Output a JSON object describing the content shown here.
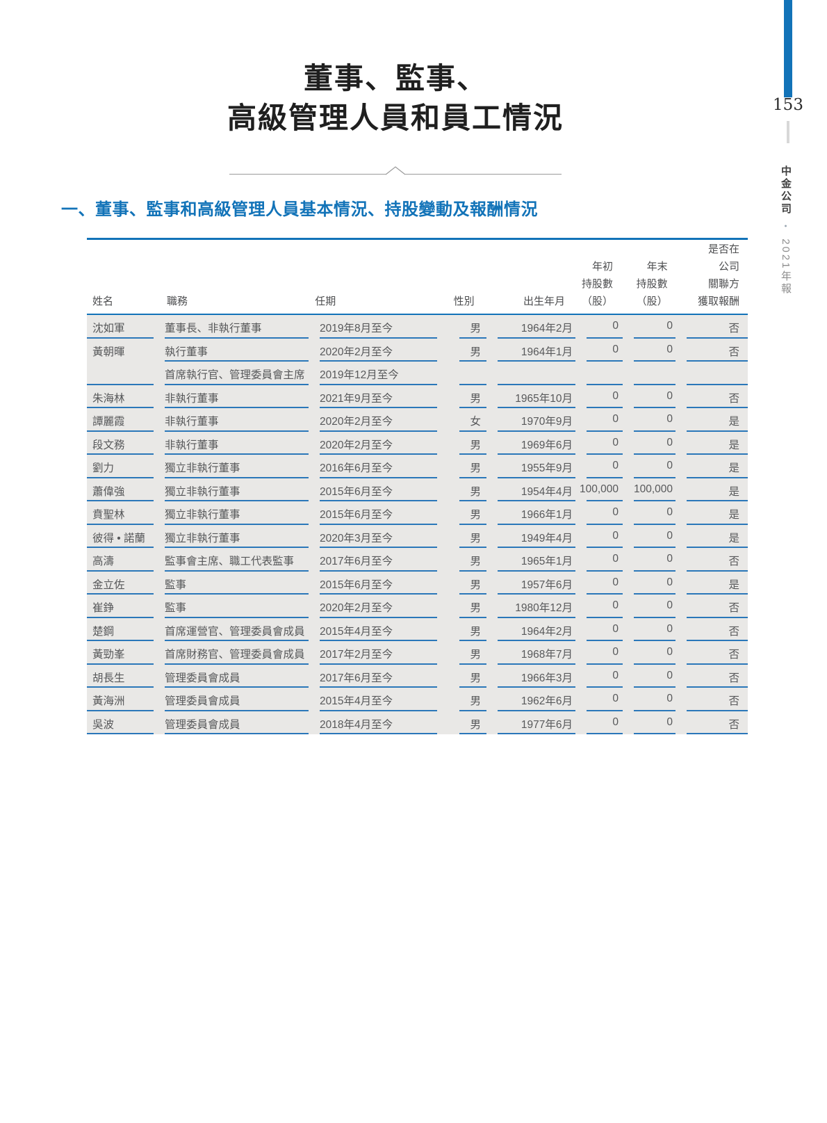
{
  "page": {
    "title_line1": "董事、監事、",
    "title_line2": "高級管理人員和員工情況",
    "section_heading": "一、董事、監事和高級管理人員基本情況、持股變動及報酬情況",
    "page_number": "153",
    "sidebar_company": "中金公司",
    "sidebar_bullet": "•",
    "sidebar_year": "2021年報"
  },
  "colors": {
    "accent_blue": "#1273b8",
    "cell_line_blue": "#2a77b9",
    "row_background": "#e9e8e6"
  },
  "table": {
    "headers": {
      "name": "姓名",
      "position": "職務",
      "term": "任期",
      "gender": "性別",
      "birth": "出生年月",
      "shares_begin": [
        "年初",
        "持股數",
        "（股）"
      ],
      "shares_end": [
        "年末",
        "持股數",
        "（股）"
      ],
      "remuneration": [
        "是否在",
        "公司",
        "關聯方",
        "獲取報酬"
      ]
    },
    "rows": [
      {
        "name": "沈如軍",
        "name_underline": true,
        "position": "董事長、非執行董事",
        "term": "2019年8月至今",
        "gender": "男",
        "birth": "1964年2月",
        "shares_begin": "0",
        "shares_end": "0",
        "remuneration": "否"
      },
      {
        "name": "黃朝暉",
        "name_underline": false,
        "position": "執行董事",
        "term": "2020年2月至今",
        "gender": "男",
        "birth": "1964年1月",
        "shares_begin": "0",
        "shares_end": "0",
        "remuneration": "否"
      },
      {
        "name": "",
        "name_underline": true,
        "position": "首席執行官、管理委員會主席",
        "term": "2019年12月至今",
        "gender": "",
        "birth": "",
        "shares_begin": "",
        "shares_end": "",
        "remuneration": ""
      },
      {
        "name": "朱海林",
        "name_underline": true,
        "position": "非執行董事",
        "term": "2021年9月至今",
        "gender": "男",
        "birth": "1965年10月",
        "shares_begin": "0",
        "shares_end": "0",
        "remuneration": "否"
      },
      {
        "name": "譚麗霞",
        "name_underline": true,
        "position": "非執行董事",
        "term": "2020年2月至今",
        "gender": "女",
        "birth": "1970年9月",
        "shares_begin": "0",
        "shares_end": "0",
        "remuneration": "是"
      },
      {
        "name": "段文務",
        "name_underline": true,
        "position": "非執行董事",
        "term": "2020年2月至今",
        "gender": "男",
        "birth": "1969年6月",
        "shares_begin": "0",
        "shares_end": "0",
        "remuneration": "是"
      },
      {
        "name": "劉力",
        "name_underline": true,
        "position": "獨立非執行董事",
        "term": "2016年6月至今",
        "gender": "男",
        "birth": "1955年9月",
        "shares_begin": "0",
        "shares_end": "0",
        "remuneration": "是"
      },
      {
        "name": "蕭偉強",
        "name_underline": true,
        "position": "獨立非執行董事",
        "term": "2015年6月至今",
        "gender": "男",
        "birth": "1954年4月",
        "shares_begin": "100,000",
        "shares_end": "100,000",
        "remuneration": "是"
      },
      {
        "name": "賁聖林",
        "name_underline": true,
        "position": "獨立非執行董事",
        "term": "2015年6月至今",
        "gender": "男",
        "birth": "1966年1月",
        "shares_begin": "0",
        "shares_end": "0",
        "remuneration": "是"
      },
      {
        "name": "彼得 • 諾蘭",
        "name_underline": true,
        "position": "獨立非執行董事",
        "term": "2020年3月至今",
        "gender": "男",
        "birth": "1949年4月",
        "shares_begin": "0",
        "shares_end": "0",
        "remuneration": "是"
      },
      {
        "name": "高濤",
        "name_underline": true,
        "position": "監事會主席、職工代表監事",
        "term": "2017年6月至今",
        "gender": "男",
        "birth": "1965年1月",
        "shares_begin": "0",
        "shares_end": "0",
        "remuneration": "否"
      },
      {
        "name": "金立佐",
        "name_underline": true,
        "position": "監事",
        "term": "2015年6月至今",
        "gender": "男",
        "birth": "1957年6月",
        "shares_begin": "0",
        "shares_end": "0",
        "remuneration": "是"
      },
      {
        "name": "崔錚",
        "name_underline": true,
        "position": "監事",
        "term": "2020年2月至今",
        "gender": "男",
        "birth": "1980年12月",
        "shares_begin": "0",
        "shares_end": "0",
        "remuneration": "否"
      },
      {
        "name": "楚鋼",
        "name_underline": true,
        "position": "首席運營官、管理委員會成員",
        "term": "2015年4月至今",
        "gender": "男",
        "birth": "1964年2月",
        "shares_begin": "0",
        "shares_end": "0",
        "remuneration": "否"
      },
      {
        "name": "黃勁峯",
        "name_underline": true,
        "position": "首席財務官、管理委員會成員",
        "term": "2017年2月至今",
        "gender": "男",
        "birth": "1968年7月",
        "shares_begin": "0",
        "shares_end": "0",
        "remuneration": "否"
      },
      {
        "name": "胡長生",
        "name_underline": true,
        "position": "管理委員會成員",
        "term": "2017年6月至今",
        "gender": "男",
        "birth": "1966年3月",
        "shares_begin": "0",
        "shares_end": "0",
        "remuneration": "否"
      },
      {
        "name": "黃海洲",
        "name_underline": true,
        "position": "管理委員會成員",
        "term": "2015年4月至今",
        "gender": "男",
        "birth": "1962年6月",
        "shares_begin": "0",
        "shares_end": "0",
        "remuneration": "否"
      },
      {
        "name": "吳波",
        "name_underline": true,
        "position": "管理委員會成員",
        "term": "2018年4月至今",
        "gender": "男",
        "birth": "1977年6月",
        "shares_begin": "0",
        "shares_end": "0",
        "remuneration": "否"
      }
    ]
  }
}
